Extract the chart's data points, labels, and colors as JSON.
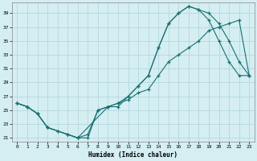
{
  "xlabel": "Humidex (Indice chaleur)",
  "background_color": "#d4eef2",
  "line_color": "#1a7070",
  "grid_color": "#aed4dc",
  "xlim": [
    -0.5,
    23.5
  ],
  "ylim": [
    20.5,
    40.5
  ],
  "yticks": [
    21,
    23,
    25,
    27,
    29,
    31,
    33,
    35,
    37,
    39
  ],
  "xticks": [
    0,
    1,
    2,
    3,
    4,
    5,
    6,
    7,
    8,
    9,
    10,
    11,
    12,
    13,
    14,
    15,
    16,
    17,
    18,
    19,
    20,
    21,
    22,
    23
  ],
  "line1_x": [
    0,
    1,
    2,
    3,
    4,
    5,
    6,
    7,
    8,
    9,
    10,
    11,
    12,
    13,
    14,
    15,
    16,
    17,
    18,
    19,
    20,
    21,
    22,
    23
  ],
  "line1_y": [
    26,
    25.5,
    24.5,
    22.5,
    22,
    21.5,
    21,
    21,
    25,
    25.5,
    26,
    27,
    28.5,
    30,
    34,
    37.5,
    39,
    40,
    39.5,
    39,
    37.5,
    35,
    32,
    30
  ],
  "line2_x": [
    0,
    1,
    2,
    3,
    4,
    5,
    6,
    7,
    8,
    9,
    10,
    11,
    12,
    13,
    14,
    15,
    16,
    17,
    18,
    19,
    20,
    21,
    22,
    23
  ],
  "line2_y": [
    26,
    25.5,
    24.5,
    22.5,
    22,
    21.5,
    21,
    21.5,
    25,
    25.5,
    26,
    26.5,
    27.5,
    28,
    30,
    32,
    33,
    34,
    35,
    36.5,
    37,
    37.5,
    38,
    30
  ],
  "line3_x": [
    0,
    1,
    2,
    3,
    5,
    6,
    9,
    10,
    11,
    12,
    13,
    14,
    15,
    16,
    17,
    18,
    19,
    20,
    21,
    22,
    23
  ],
  "line3_y": [
    26,
    25.5,
    24.5,
    22.5,
    21.5,
    21,
    25.5,
    25.5,
    27,
    28.5,
    30,
    34,
    37.5,
    39,
    40,
    39.5,
    38,
    35,
    32,
    30,
    30
  ]
}
